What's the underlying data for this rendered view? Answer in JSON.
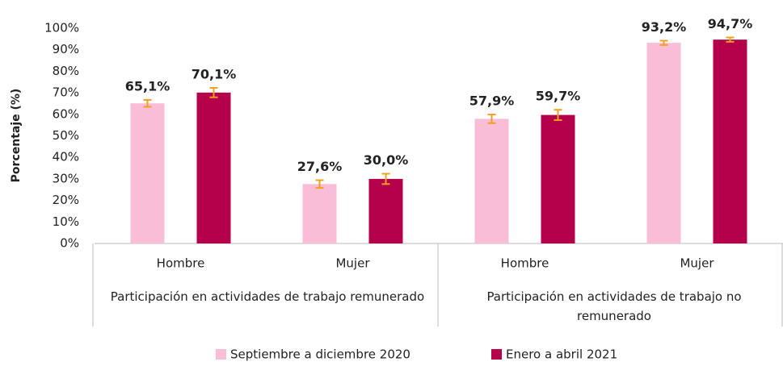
{
  "chart_data": {
    "type": "bar",
    "ylabel": "Porcentaje (%)",
    "categories": [
      "Hombre",
      "Mujer",
      "Hombre",
      "Mujer"
    ],
    "groups": [
      "Participación en actividades de trabajo remunerado",
      "Participación en actividades de trabajo no remunerado"
    ],
    "series": [
      {
        "name": "Septiembre a diciembre 2020",
        "color": "#f9bdd8",
        "values": [
          65.1,
          27.6,
          57.9,
          93.2
        ],
        "value_labels": [
          "65,1%",
          "27,6%",
          "57,9%",
          "93,2%"
        ],
        "errors": [
          1.6,
          1.8,
          2.0,
          1.0
        ]
      },
      {
        "name": "Enero a abril 2021",
        "color": "#b5004b",
        "values": [
          70.1,
          30.0,
          59.7,
          94.7
        ],
        "value_labels": [
          "70,1%",
          "30,0%",
          "59,7%",
          "94,7%"
        ],
        "errors": [
          2.2,
          2.4,
          2.4,
          1.0
        ]
      }
    ],
    "error_color": "#f0a020",
    "ylim": [
      0,
      100
    ],
    "yticks": [
      {
        "value": 0,
        "label": "0%"
      },
      {
        "value": 10,
        "label": "10%"
      },
      {
        "value": 20,
        "label": "20%"
      },
      {
        "value": 30,
        "label": "30%"
      },
      {
        "value": 40,
        "label": "40%"
      },
      {
        "value": 50,
        "label": "50%"
      },
      {
        "value": 60,
        "label": "60%"
      },
      {
        "value": 70,
        "label": "70%"
      },
      {
        "value": 80,
        "label": "80%"
      },
      {
        "value": 90,
        "label": "90%"
      },
      {
        "value": 100,
        "label": "100%"
      }
    ]
  }
}
